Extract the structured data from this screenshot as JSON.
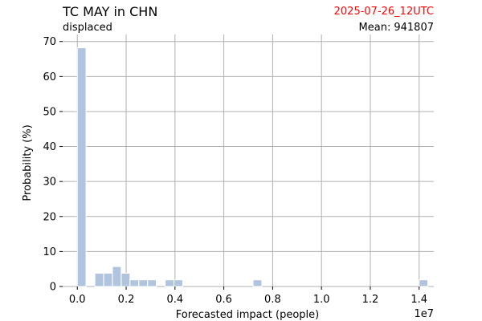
{
  "header": {
    "title": "TC MAY in CHN",
    "subtitle": "displaced",
    "date": "2025-07-26_12UTC",
    "mean_label": "Mean:",
    "mean_value": "941807"
  },
  "colors": {
    "bar": "#b0c4de",
    "grid": "#b0b0b0",
    "date": "#ff0000"
  },
  "chart_data": {
    "type": "bar",
    "title": "TC MAY in CHN",
    "xlabel": "Forecasted impact (people)",
    "ylabel": "Probability (%)",
    "x_scale_note": "1e7",
    "xlim": [
      -0.06,
      1.46
    ],
    "ylim": [
      0,
      72
    ],
    "grid": true,
    "x_ticks": [
      0.0,
      0.2,
      0.4,
      0.6,
      0.8,
      1.0,
      1.2,
      1.4
    ],
    "x_tick_labels": [
      "0.0",
      "0.2",
      "0.4",
      "0.6",
      "0.8",
      "1.0",
      "1.2",
      "1.4"
    ],
    "y_ticks": [
      0,
      10,
      20,
      30,
      40,
      50,
      60,
      70
    ],
    "y_tick_labels": [
      "0",
      "10",
      "20",
      "30",
      "40",
      "50",
      "60",
      "70"
    ],
    "bin_width": 0.0356,
    "bins": [
      {
        "x0": 0.0,
        "value": 68.2
      },
      {
        "x0": 0.036,
        "value": 0
      },
      {
        "x0": 0.072,
        "value": 3.8
      },
      {
        "x0": 0.108,
        "value": 3.8
      },
      {
        "x0": 0.144,
        "value": 5.7
      },
      {
        "x0": 0.18,
        "value": 3.8
      },
      {
        "x0": 0.216,
        "value": 1.9
      },
      {
        "x0": 0.252,
        "value": 1.9
      },
      {
        "x0": 0.288,
        "value": 1.9
      },
      {
        "x0": 0.324,
        "value": 0
      },
      {
        "x0": 0.36,
        "value": 1.9
      },
      {
        "x0": 0.396,
        "value": 1.9
      },
      {
        "x0": 0.72,
        "value": 1.9
      },
      {
        "x0": 1.4,
        "value": 1.9
      }
    ]
  }
}
